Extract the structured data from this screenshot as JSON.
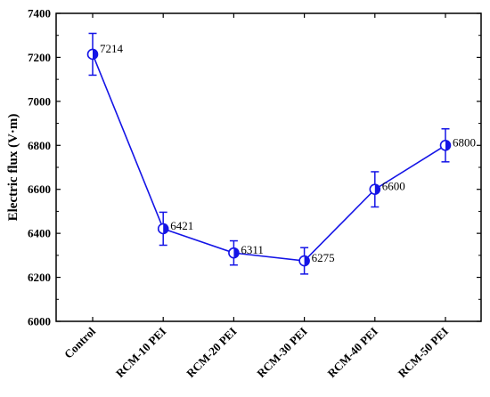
{
  "chart_data": {
    "type": "line",
    "title": "",
    "xlabel": "",
    "ylabel": "Electric flux (V·m)",
    "ylim": [
      6000,
      7400
    ],
    "yticks": [
      6000,
      6200,
      6400,
      6600,
      6800,
      7000,
      7200,
      7400
    ],
    "categories": [
      "Control",
      "RCM-10 PEI",
      "RCM-20 PEI",
      "RCM-30 PEI",
      "RCM-40 PEI",
      "RCM-50 PEI"
    ],
    "series": [
      {
        "values": [
          7214,
          6421,
          6311,
          6275,
          6600,
          6800
        ],
        "error": [
          95,
          75,
          55,
          60,
          80,
          75
        ],
        "data_labels": [
          "7214",
          "6421",
          "6311",
          "6275",
          "6600",
          "6800"
        ]
      }
    ],
    "grid": false,
    "legend": "none",
    "colors": {
      "line": "#1414e6",
      "marker": "#1414e6",
      "axis": "#000000"
    },
    "marker": "half-filled circle"
  }
}
